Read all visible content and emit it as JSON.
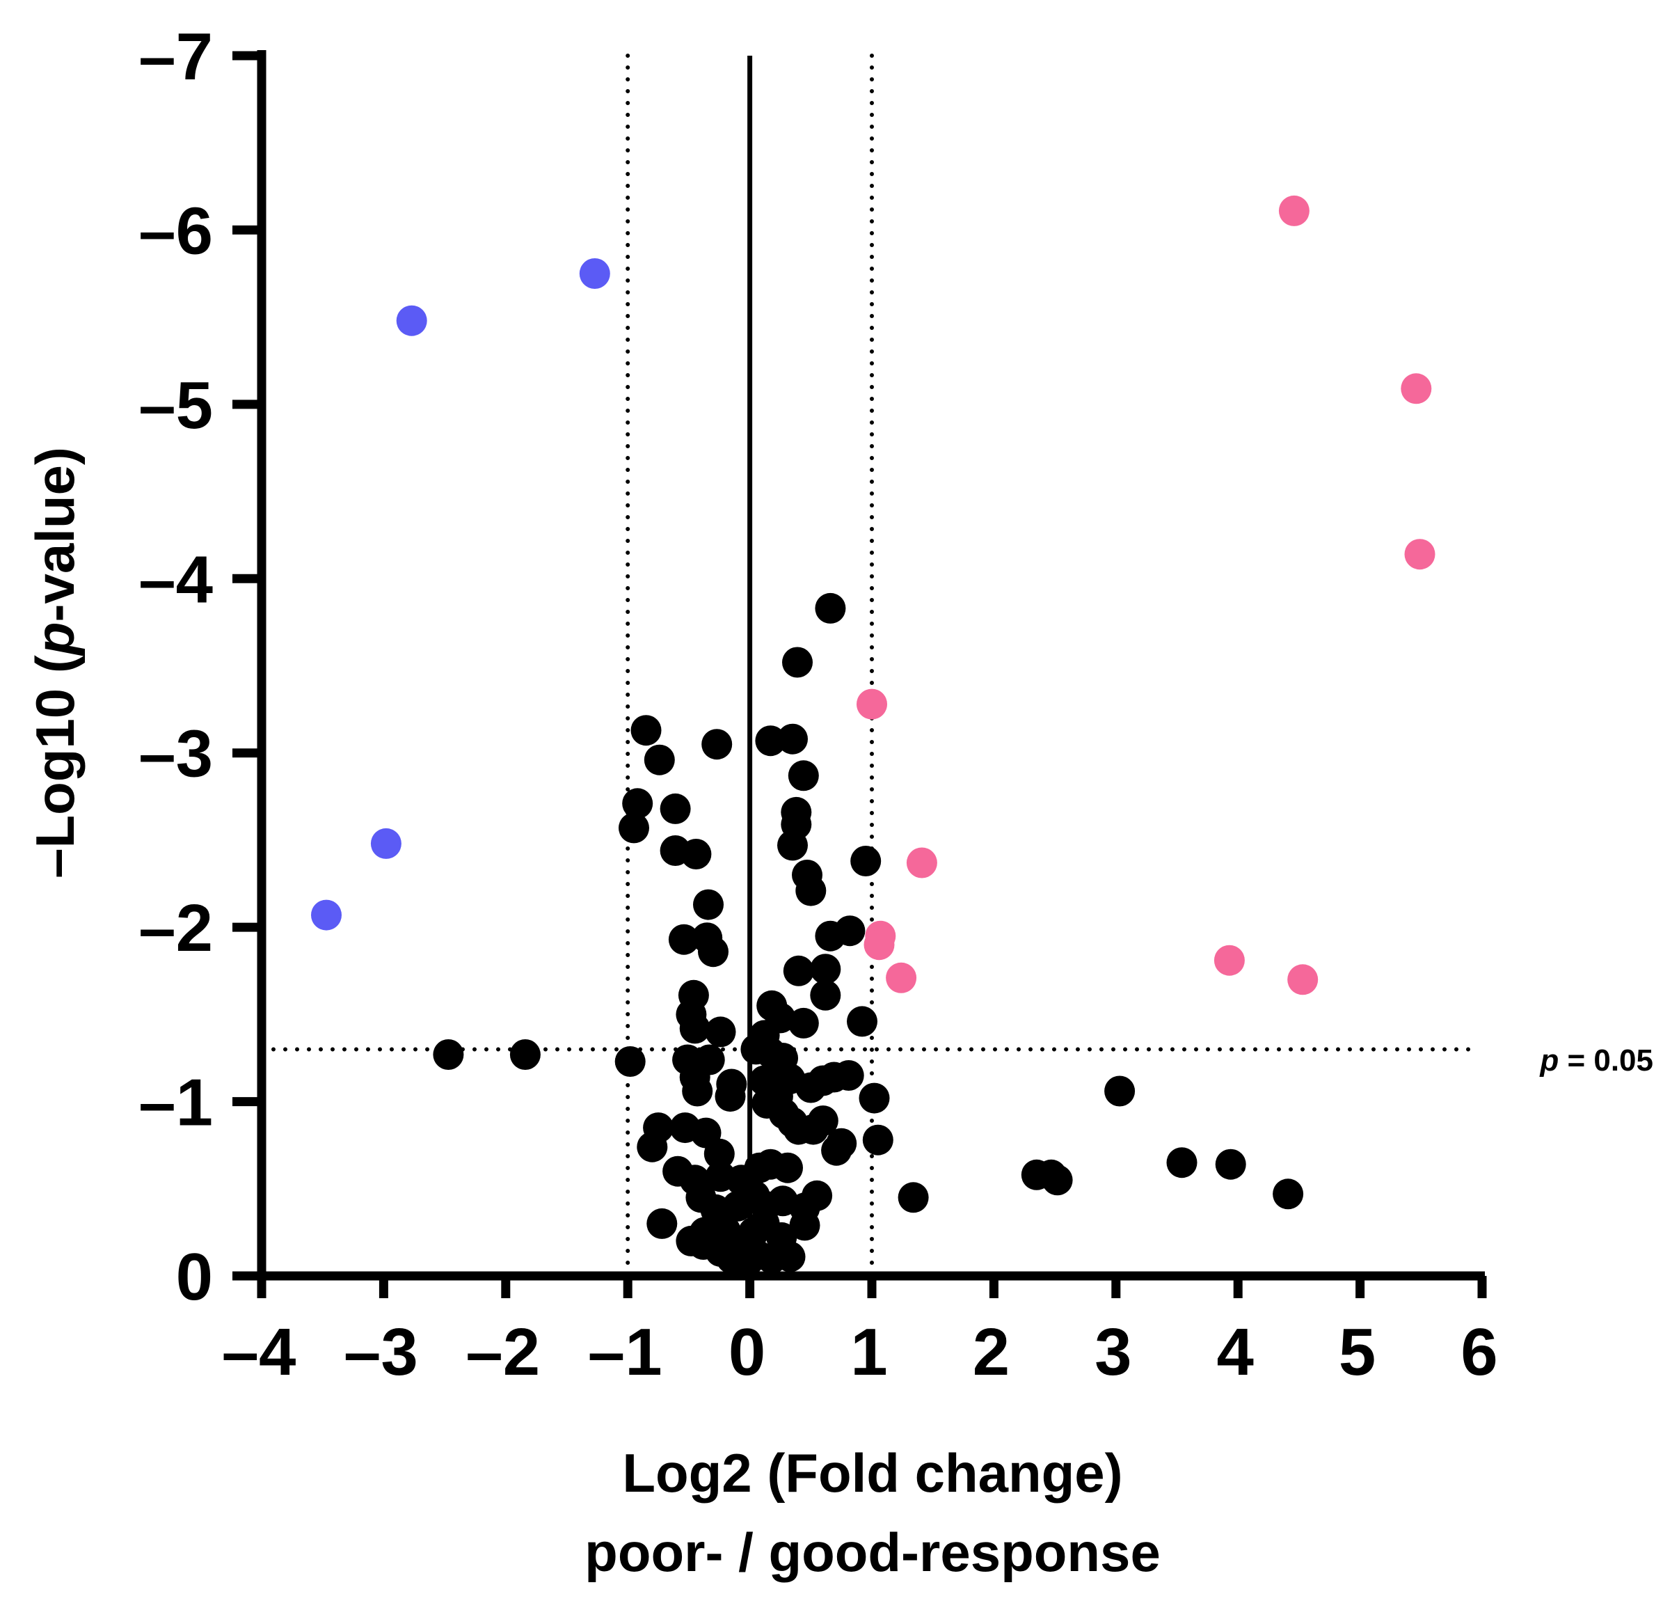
{
  "chart_data": {
    "type": "scatter",
    "xlabel": "Log2 (Fold change)",
    "xlabel_sub": "poor- / good-response",
    "ylabel_prefix": "–Log10 (",
    "ylabel_italic": "p",
    "ylabel_suffix": "-value)",
    "xlim": [
      -4,
      6
    ],
    "ylim": [
      0,
      7
    ],
    "x_ticks": [
      {
        "v": -4,
        "label": "–4"
      },
      {
        "v": -3,
        "label": "–3"
      },
      {
        "v": -2,
        "label": "–2"
      },
      {
        "v": -1,
        "label": "–1"
      },
      {
        "v": 0,
        "label": "0"
      },
      {
        "v": 1,
        "label": "1"
      },
      {
        "v": 2,
        "label": "2"
      },
      {
        "v": 3,
        "label": "3"
      },
      {
        "v": 4,
        "label": "4"
      },
      {
        "v": 5,
        "label": "5"
      },
      {
        "v": 6,
        "label": "6"
      }
    ],
    "y_ticks": [
      {
        "v": 0,
        "label": "0"
      },
      {
        "v": 1,
        "label": "–1"
      },
      {
        "v": 2,
        "label": "–2"
      },
      {
        "v": 3,
        "label": "–3"
      },
      {
        "v": 4,
        "label": "–4"
      },
      {
        "v": 5,
        "label": "–5"
      },
      {
        "v": 6,
        "label": "–6"
      },
      {
        "v": 7,
        "label": "–7"
      }
    ],
    "threshold": {
      "y": 1.3,
      "label_italic": "p",
      "label_rest": " = 0.05"
    },
    "vertical_lines": [
      {
        "x": -1,
        "style": "dotted"
      },
      {
        "x": 0,
        "style": "solid"
      },
      {
        "x": 1,
        "style": "dotted"
      }
    ],
    "grid": false,
    "series": [
      {
        "color": "#5b5bf5",
        "points": [
          [
            -1.27,
            5.75
          ],
          [
            -2.77,
            5.48
          ],
          [
            -2.98,
            2.48
          ],
          [
            -3.47,
            2.07
          ]
        ]
      },
      {
        "color": "#f5689a",
        "points": [
          [
            4.46,
            6.11
          ],
          [
            5.46,
            5.09
          ],
          [
            5.49,
            4.14
          ],
          [
            1.0,
            3.28
          ],
          [
            1.41,
            2.37
          ],
          [
            1.07,
            1.95
          ],
          [
            1.06,
            1.9
          ],
          [
            1.24,
            1.71
          ],
          [
            3.93,
            1.81
          ],
          [
            4.53,
            1.7
          ]
        ]
      },
      {
        "color": "#000000",
        "points": [
          [
            0.66,
            3.83
          ],
          [
            0.39,
            3.52
          ],
          [
            -0.85,
            3.13
          ],
          [
            -0.74,
            2.96
          ],
          [
            -0.27,
            3.05
          ],
          [
            0.17,
            3.07
          ],
          [
            0.35,
            3.08
          ],
          [
            0.44,
            2.87
          ],
          [
            -0.92,
            2.71
          ],
          [
            -0.95,
            2.57
          ],
          [
            -0.61,
            2.68
          ],
          [
            -0.61,
            2.44
          ],
          [
            -0.44,
            2.42
          ],
          [
            0.38,
            2.66
          ],
          [
            0.38,
            2.59
          ],
          [
            0.35,
            2.47
          ],
          [
            0.47,
            2.3
          ],
          [
            0.5,
            2.21
          ],
          [
            0.95,
            2.38
          ],
          [
            -0.34,
            2.13
          ],
          [
            -0.54,
            1.93
          ],
          [
            -0.35,
            1.94
          ],
          [
            -0.3,
            1.86
          ],
          [
            0.66,
            1.95
          ],
          [
            0.82,
            1.98
          ],
          [
            0.4,
            1.75
          ],
          [
            0.62,
            1.76
          ],
          [
            0.62,
            1.61
          ],
          [
            -0.46,
            1.61
          ],
          [
            -0.48,
            1.5
          ],
          [
            -0.45,
            1.42
          ],
          [
            -0.24,
            1.4
          ],
          [
            0.18,
            1.55
          ],
          [
            0.25,
            1.48
          ],
          [
            0.44,
            1.45
          ],
          [
            0.92,
            1.46
          ],
          [
            0.12,
            1.38
          ],
          [
            -0.98,
            1.23
          ],
          [
            -2.47,
            1.27
          ],
          [
            -1.84,
            1.27
          ],
          [
            -0.51,
            1.24
          ],
          [
            -0.33,
            1.24
          ],
          [
            -0.45,
            1.14
          ],
          [
            -0.43,
            1.06
          ],
          [
            -0.15,
            1.1
          ],
          [
            -0.16,
            1.03
          ],
          [
            0.05,
            1.3
          ],
          [
            0.17,
            1.28
          ],
          [
            0.27,
            1.25
          ],
          [
            0.33,
            1.13
          ],
          [
            0.12,
            1.12
          ],
          [
            0.23,
            1.03
          ],
          [
            0.5,
            1.08
          ],
          [
            0.6,
            1.12
          ],
          [
            0.69,
            1.14
          ],
          [
            0.81,
            1.15
          ],
          [
            1.02,
            1.02
          ],
          [
            -0.75,
            0.85
          ],
          [
            -0.53,
            0.85
          ],
          [
            -0.36,
            0.82
          ],
          [
            -0.8,
            0.74
          ],
          [
            -0.25,
            0.7
          ],
          [
            0.14,
            0.99
          ],
          [
            0.28,
            0.93
          ],
          [
            0.35,
            0.88
          ],
          [
            0.4,
            0.84
          ],
          [
            0.52,
            0.84
          ],
          [
            0.6,
            0.89
          ],
          [
            0.71,
            0.72
          ],
          [
            0.75,
            0.76
          ],
          [
            1.05,
            0.78
          ],
          [
            -0.59,
            0.6
          ],
          [
            -0.45,
            0.55
          ],
          [
            -0.24,
            0.57
          ],
          [
            -0.07,
            0.55
          ],
          [
            0.08,
            0.62
          ],
          [
            0.17,
            0.64
          ],
          [
            0.31,
            0.62
          ],
          [
            -0.4,
            0.45
          ],
          [
            -0.28,
            0.38
          ],
          [
            -0.1,
            0.4
          ],
          [
            0.04,
            0.46
          ],
          [
            0.13,
            0.4
          ],
          [
            0.27,
            0.43
          ],
          [
            0.45,
            0.39
          ],
          [
            0.55,
            0.46
          ],
          [
            -0.72,
            0.3
          ],
          [
            -0.48,
            0.2
          ],
          [
            -0.37,
            0.25
          ],
          [
            -0.2,
            0.26
          ],
          [
            -0.09,
            0.18
          ],
          [
            0.03,
            0.25
          ],
          [
            0.12,
            0.3
          ],
          [
            0.26,
            0.22
          ],
          [
            0.45,
            0.29
          ],
          [
            -0.38,
            0.18
          ],
          [
            -0.15,
            0.1
          ],
          [
            -0.02,
            0.08
          ],
          [
            0.06,
            0.12
          ],
          [
            0.18,
            0.1
          ],
          [
            0.33,
            0.11
          ],
          [
            -0.24,
            0.14
          ],
          [
            1.34,
            0.45
          ],
          [
            2.35,
            0.58
          ],
          [
            2.47,
            0.58
          ],
          [
            2.52,
            0.55
          ],
          [
            3.03,
            1.06
          ],
          [
            3.54,
            0.65
          ],
          [
            3.94,
            0.64
          ],
          [
            4.41,
            0.47
          ]
        ]
      }
    ]
  }
}
